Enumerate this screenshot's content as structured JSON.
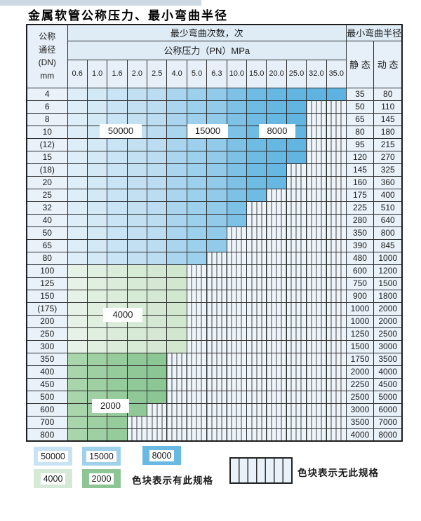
{
  "page": {
    "title": "金属软管公称压力、最小弯曲半径"
  },
  "table_header": {
    "dn_label_lines": [
      "公称",
      "通径",
      "(DN)",
      "mm"
    ],
    "cycles_label": "最少弯曲次数，次",
    "pressure_label": "公称压力（PN）MPa",
    "radius_label": "最小弯曲半径",
    "static_label": "静 态",
    "dynamic_label": "动 态"
  },
  "zones": {
    "blue_shades": [
      "#ddeef8",
      "#d3e9f6",
      "#c9e4f4",
      "#c2e0f2",
      "#bcddf1",
      "#a9d5ee",
      "#9cd0ec",
      "#92cbea",
      "#7dc2e6",
      "#6ebbe3",
      "#66b7e2",
      "#62b5e1",
      "#5fb3e0",
      "#5db2df"
    ],
    "green_4000_shades": [
      "#e6f2e5",
      "#e0efdf",
      "#dbecda",
      "#d7ead6",
      "#d4e8d3",
      "#d1e7d0"
    ],
    "green_2000_shades": [
      "#a9d5ac",
      "#9fd0a3",
      "#96cb9b",
      "#90c897",
      "#8cc694"
    ]
  },
  "annotations": {
    "a50000": "50000",
    "a15000": "15000",
    "a8000": "8000",
    "a4000": "4000",
    "a2000": "2000"
  },
  "legend": {
    "has_spec_label": "色块表示有此规格",
    "no_spec_label": "色块表示无此规格",
    "swatches": [
      {
        "label": "50000",
        "color": "#c9e3f4"
      },
      {
        "label": "15000",
        "color": "#9fd1ec"
      },
      {
        "label": "8000",
        "color": "#6ab9e3"
      },
      {
        "label": "4000",
        "color": "#d6e9d6"
      },
      {
        "label": "2000",
        "color": "#8ec595"
      }
    ]
  },
  "chart_data": {
    "type": "table",
    "title": "金属软管公称压力、最小弯曲半径",
    "columns_pn_mpa": [
      "0.6",
      "1.0",
      "1.6",
      "2.0",
      "2.5",
      "4.0",
      "5.0",
      "6.3",
      "10.0",
      "15.0",
      "20.0",
      "25.0",
      "32.0",
      "35.0"
    ],
    "rows": [
      {
        "dn": "4",
        "colored_through": 14,
        "static": "35",
        "dynamic": "80"
      },
      {
        "dn": "6",
        "colored_through": 12,
        "static": "50",
        "dynamic": "110"
      },
      {
        "dn": "8",
        "colored_through": 12,
        "static": "65",
        "dynamic": "145"
      },
      {
        "dn": "10",
        "colored_through": 12,
        "static": "80",
        "dynamic": "180"
      },
      {
        "dn": "(12)",
        "colored_through": 12,
        "static": "95",
        "dynamic": "215"
      },
      {
        "dn": "15",
        "colored_through": 12,
        "static": "120",
        "dynamic": "270"
      },
      {
        "dn": "(18)",
        "colored_through": 11,
        "static": "145",
        "dynamic": "325"
      },
      {
        "dn": "20",
        "colored_through": 11,
        "static": "160",
        "dynamic": "360"
      },
      {
        "dn": "25",
        "colored_through": 10,
        "static": "175",
        "dynamic": "400"
      },
      {
        "dn": "32",
        "colored_through": 9,
        "static": "225",
        "dynamic": "510"
      },
      {
        "dn": "40",
        "colored_through": 9,
        "static": "280",
        "dynamic": "640"
      },
      {
        "dn": "50",
        "colored_through": 8,
        "static": "350",
        "dynamic": "800"
      },
      {
        "dn": "65",
        "colored_through": 8,
        "static": "390",
        "dynamic": "845"
      },
      {
        "dn": "80",
        "colored_through": 7,
        "static": "480",
        "dynamic": "1000"
      },
      {
        "dn": "100",
        "colored_through": 6,
        "static": "600",
        "dynamic": "1200"
      },
      {
        "dn": "125",
        "colored_through": 6,
        "static": "750",
        "dynamic": "1500"
      },
      {
        "dn": "150",
        "colored_through": 6,
        "static": "900",
        "dynamic": "1800"
      },
      {
        "dn": "(175)",
        "colored_through": 6,
        "static": "1000",
        "dynamic": "2000"
      },
      {
        "dn": "200",
        "colored_through": 6,
        "static": "1000",
        "dynamic": "2000"
      },
      {
        "dn": "250",
        "colored_through": 6,
        "static": "1250",
        "dynamic": "2500"
      },
      {
        "dn": "300",
        "colored_through": 6,
        "static": "1500",
        "dynamic": "3000"
      },
      {
        "dn": "350",
        "colored_through": 5,
        "static": "1750",
        "dynamic": "3500"
      },
      {
        "dn": "400",
        "colored_through": 5,
        "static": "2000",
        "dynamic": "4000"
      },
      {
        "dn": "450",
        "colored_through": 5,
        "static": "2250",
        "dynamic": "4500"
      },
      {
        "dn": "500",
        "colored_through": 5,
        "static": "2500",
        "dynamic": "5000"
      },
      {
        "dn": "600",
        "colored_through": 4,
        "static": "3000",
        "dynamic": "6000"
      },
      {
        "dn": "700",
        "colored_through": 3,
        "static": "3500",
        "dynamic": "7000"
      },
      {
        "dn": "800",
        "colored_through": 3,
        "static": "4000",
        "dynamic": "8000"
      }
    ],
    "bend_cycle_zones": [
      {
        "cycles": 50000,
        "dn_range": "4-80",
        "pn_range_mpa": "0.6-2.5"
      },
      {
        "cycles": 15000,
        "dn_range": "4-80",
        "pn_range_mpa": "4.0-6.3"
      },
      {
        "cycles": 8000,
        "dn_range": "4-80",
        "pn_range_mpa": "10.0-35.0"
      },
      {
        "cycles": 4000,
        "dn_range": "100-300",
        "pn_range_mpa": "0.6-4.0"
      },
      {
        "cycles": 2000,
        "dn_range": "350-800",
        "pn_range_mpa": "0.6-2.5"
      }
    ],
    "notes": {
      "colored": "色块表示有此规格",
      "striped": "色块表示无此规格"
    }
  }
}
